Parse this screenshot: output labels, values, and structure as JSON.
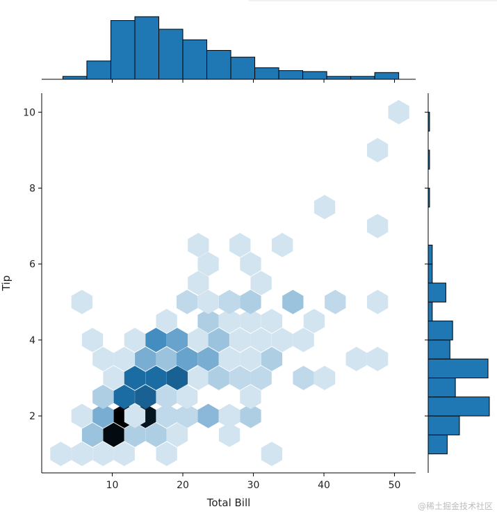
{
  "chart_data": {
    "type": "hexbin_joint",
    "xlabel": "Total Bill",
    "ylabel": "Tip",
    "xlim": [
      0,
      53
    ],
    "ylim": [
      0.5,
      10.5
    ],
    "xticks": [
      10,
      20,
      30,
      40,
      50
    ],
    "yticks": [
      2,
      4,
      6,
      8,
      10
    ],
    "color_base": "#1f77b4",
    "color_dark": "#000000",
    "top_hist": {
      "bins": [
        [
          3,
          6.4
        ],
        [
          6.4,
          9.8
        ],
        [
          9.8,
          13.2
        ],
        [
          13.2,
          16.6
        ],
        [
          16.6,
          20
        ],
        [
          20,
          23.4
        ],
        [
          23.4,
          26.8
        ],
        [
          26.8,
          30.2
        ],
        [
          30.2,
          33.6
        ],
        [
          33.6,
          37
        ],
        [
          37,
          40.4
        ],
        [
          40.4,
          43.8
        ],
        [
          43.8,
          47.2
        ],
        [
          47.2,
          50.6
        ]
      ],
      "counts": [
        3,
        19,
        61,
        65,
        52,
        41,
        30,
        23,
        12,
        9,
        8,
        3,
        3,
        7
      ]
    },
    "right_hist": {
      "bins": [
        [
          1,
          1.5
        ],
        [
          1.5,
          2
        ],
        [
          2,
          2.5
        ],
        [
          2.5,
          3
        ],
        [
          3,
          3.5
        ],
        [
          3.5,
          4
        ],
        [
          4,
          4.5
        ],
        [
          4.5,
          5
        ],
        [
          5,
          5.5
        ],
        [
          5.5,
          6
        ],
        [
          6,
          6.5
        ],
        [
          6.5,
          7
        ],
        [
          7,
          7.5
        ],
        [
          7.5,
          8
        ],
        [
          8,
          8.5
        ],
        [
          8.5,
          9
        ],
        [
          9,
          9.5
        ],
        [
          9.5,
          10
        ]
      ],
      "counts": [
        14,
        23,
        45,
        20,
        44,
        16,
        18,
        3,
        13,
        3,
        3,
        0,
        0,
        1,
        0,
        1,
        0,
        1
      ]
    },
    "hexbins": [
      {
        "x": 2.7,
        "y": 1.0,
        "count": 1
      },
      {
        "x": 5.7,
        "y": 1.0,
        "count": 1
      },
      {
        "x": 8.7,
        "y": 1.0,
        "count": 1
      },
      {
        "x": 11.7,
        "y": 1.0,
        "count": 1
      },
      {
        "x": 17.7,
        "y": 1.0,
        "count": 1
      },
      {
        "x": 32.6,
        "y": 1.0,
        "count": 1
      },
      {
        "x": 5.7,
        "y": 2.0,
        "count": 1
      },
      {
        "x": 8.7,
        "y": 2.0,
        "count": 6
      },
      {
        "x": 11.7,
        "y": 2.0,
        "count": 22
      },
      {
        "x": 14.7,
        "y": 2.0,
        "count": 20
      },
      {
        "x": 17.7,
        "y": 2.0,
        "count": 2
      },
      {
        "x": 20.6,
        "y": 2.0,
        "count": 2
      },
      {
        "x": 23.6,
        "y": 2.0,
        "count": 5
      },
      {
        "x": 26.6,
        "y": 2.0,
        "count": 1
      },
      {
        "x": 29.6,
        "y": 2.0,
        "count": 3
      },
      {
        "x": 7.2,
        "y": 1.5,
        "count": 4
      },
      {
        "x": 10.2,
        "y": 1.5,
        "count": 21
      },
      {
        "x": 13.2,
        "y": 1.5,
        "count": 3
      },
      {
        "x": 16.2,
        "y": 1.5,
        "count": 3
      },
      {
        "x": 19.2,
        "y": 1.5,
        "count": 1
      },
      {
        "x": 26.6,
        "y": 1.5,
        "count": 1
      },
      {
        "x": 8.7,
        "y": 2.5,
        "count": 3
      },
      {
        "x": 11.7,
        "y": 2.5,
        "count": 12
      },
      {
        "x": 14.7,
        "y": 2.5,
        "count": 13
      },
      {
        "x": 17.7,
        "y": 2.5,
        "count": 2
      },
      {
        "x": 20.6,
        "y": 2.5,
        "count": 1
      },
      {
        "x": 29.6,
        "y": 2.5,
        "count": 1
      },
      {
        "x": 10.2,
        "y": 3.0,
        "count": 1
      },
      {
        "x": 13.2,
        "y": 3.0,
        "count": 12
      },
      {
        "x": 16.2,
        "y": 3.0,
        "count": 12
      },
      {
        "x": 19.2,
        "y": 3.0,
        "count": 13
      },
      {
        "x": 22.2,
        "y": 3.0,
        "count": 1
      },
      {
        "x": 25.1,
        "y": 3.0,
        "count": 3
      },
      {
        "x": 28.1,
        "y": 3.0,
        "count": 2
      },
      {
        "x": 31.1,
        "y": 3.0,
        "count": 2
      },
      {
        "x": 37.1,
        "y": 3.0,
        "count": 2
      },
      {
        "x": 40.1,
        "y": 3.0,
        "count": 1
      },
      {
        "x": 13.2,
        "y": 2.0,
        "count": 1
      },
      {
        "x": 8.7,
        "y": 3.5,
        "count": 1
      },
      {
        "x": 11.7,
        "y": 3.5,
        "count": 1
      },
      {
        "x": 14.7,
        "y": 3.5,
        "count": 6
      },
      {
        "x": 17.7,
        "y": 3.5,
        "count": 4
      },
      {
        "x": 20.6,
        "y": 3.5,
        "count": 7
      },
      {
        "x": 23.6,
        "y": 3.5,
        "count": 6
      },
      {
        "x": 26.6,
        "y": 3.5,
        "count": 1
      },
      {
        "x": 29.6,
        "y": 3.5,
        "count": 1
      },
      {
        "x": 32.6,
        "y": 3.5,
        "count": 3
      },
      {
        "x": 44.6,
        "y": 3.5,
        "count": 1
      },
      {
        "x": 47.6,
        "y": 3.5,
        "count": 1
      },
      {
        "x": 7.2,
        "y": 4.0,
        "count": 1
      },
      {
        "x": 13.2,
        "y": 4.0,
        "count": 1
      },
      {
        "x": 16.2,
        "y": 4.0,
        "count": 9
      },
      {
        "x": 19.2,
        "y": 4.0,
        "count": 7
      },
      {
        "x": 22.2,
        "y": 4.0,
        "count": 1
      },
      {
        "x": 25.1,
        "y": 4.0,
        "count": 4
      },
      {
        "x": 28.1,
        "y": 4.0,
        "count": 1
      },
      {
        "x": 31.1,
        "y": 4.0,
        "count": 1
      },
      {
        "x": 34.1,
        "y": 4.0,
        "count": 1
      },
      {
        "x": 37.1,
        "y": 4.0,
        "count": 1
      },
      {
        "x": 17.7,
        "y": 4.5,
        "count": 1
      },
      {
        "x": 23.6,
        "y": 4.5,
        "count": 3
      },
      {
        "x": 26.6,
        "y": 4.5,
        "count": 1
      },
      {
        "x": 29.6,
        "y": 4.5,
        "count": 1
      },
      {
        "x": 32.6,
        "y": 4.5,
        "count": 1
      },
      {
        "x": 38.6,
        "y": 4.5,
        "count": 1
      },
      {
        "x": 5.7,
        "y": 5.0,
        "count": 1
      },
      {
        "x": 20.6,
        "y": 5.0,
        "count": 2
      },
      {
        "x": 23.6,
        "y": 5.0,
        "count": 1
      },
      {
        "x": 26.6,
        "y": 5.0,
        "count": 2
      },
      {
        "x": 29.6,
        "y": 5.0,
        "count": 3
      },
      {
        "x": 35.6,
        "y": 5.0,
        "count": 4
      },
      {
        "x": 41.6,
        "y": 5.0,
        "count": 2
      },
      {
        "x": 47.6,
        "y": 5.0,
        "count": 1
      },
      {
        "x": 22.2,
        "y": 5.5,
        "count": 1
      },
      {
        "x": 31.1,
        "y": 5.5,
        "count": 1
      },
      {
        "x": 23.6,
        "y": 6.0,
        "count": 1
      },
      {
        "x": 29.6,
        "y": 6.0,
        "count": 1
      },
      {
        "x": 22.2,
        "y": 6.5,
        "count": 1
      },
      {
        "x": 28.1,
        "y": 6.5,
        "count": 1
      },
      {
        "x": 34.1,
        "y": 6.5,
        "count": 1
      },
      {
        "x": 47.6,
        "y": 7.0,
        "count": 1
      },
      {
        "x": 40.1,
        "y": 7.5,
        "count": 1
      },
      {
        "x": 47.6,
        "y": 9.0,
        "count": 1
      },
      {
        "x": 50.6,
        "y": 10.0,
        "count": 1
      }
    ]
  },
  "watermark": "@稀土掘金技术社区"
}
